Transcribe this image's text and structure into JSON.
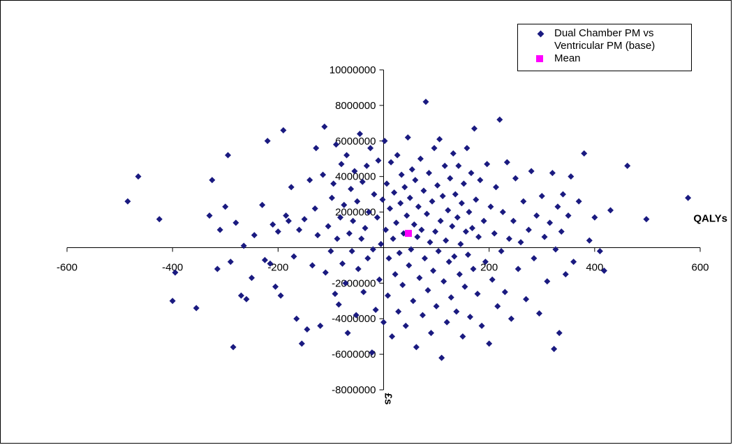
{
  "colors": {
    "series": "#1a1a80",
    "mean": "#ff00ff"
  },
  "chart_data": {
    "type": "scatter",
    "title": "",
    "xlabel": "QALYs",
    "ylabel": "£s",
    "xlim": [
      -600,
      600
    ],
    "ylim": [
      -8000000,
      10000000
    ],
    "x_ticks": [
      -600,
      -400,
      -200,
      0,
      200,
      400,
      600
    ],
    "y_ticks": [
      -8000000,
      -6000000,
      -4000000,
      -2000000,
      0,
      2000000,
      4000000,
      6000000,
      8000000,
      10000000
    ],
    "legend_position": "top-right",
    "grid": false,
    "series": [
      {
        "name": "Dual Chamber PM vs Ventricular PM (base)",
        "marker": "diamond",
        "points": [
          [
            -485,
            2600000
          ],
          [
            -465,
            4000000
          ],
          [
            -425,
            1600000
          ],
          [
            -395,
            -1400000
          ],
          [
            -400,
            -3000000
          ],
          [
            -355,
            -3400000
          ],
          [
            -330,
            1800000
          ],
          [
            -325,
            3800000
          ],
          [
            -315,
            -1200000
          ],
          [
            -310,
            1000000
          ],
          [
            -300,
            2300000
          ],
          [
            -295,
            5200000
          ],
          [
            -290,
            -800000
          ],
          [
            -285,
            -5600000
          ],
          [
            -280,
            1400000
          ],
          [
            -270,
            -2700000
          ],
          [
            -265,
            100000
          ],
          [
            -260,
            -2900000
          ],
          [
            -250,
            -1700000
          ],
          [
            -245,
            700000
          ],
          [
            -230,
            2400000
          ],
          [
            -225,
            -700000
          ],
          [
            -220,
            6000000
          ],
          [
            -215,
            -900000
          ],
          [
            -210,
            1300000
          ],
          [
            -205,
            -2200000
          ],
          [
            -200,
            900000
          ],
          [
            -195,
            -2700000
          ],
          [
            -190,
            6600000
          ],
          [
            -185,
            1800000
          ],
          [
            -180,
            1500000
          ],
          [
            -175,
            3400000
          ],
          [
            -170,
            -500000
          ],
          [
            -165,
            -4000000
          ],
          [
            -160,
            1000000
          ],
          [
            -155,
            -5400000
          ],
          [
            -150,
            1600000
          ],
          [
            -145,
            -4600000
          ],
          [
            -140,
            3800000
          ],
          [
            -135,
            -1000000
          ],
          [
            -130,
            2200000
          ],
          [
            -128,
            5600000
          ],
          [
            -125,
            700000
          ],
          [
            -120,
            -4400000
          ],
          [
            -115,
            4100000
          ],
          [
            -112,
            6800000
          ],
          [
            -110,
            -1400000
          ],
          [
            -105,
            1200000
          ],
          [
            -100,
            -200000
          ],
          [
            -98,
            2800000
          ],
          [
            -95,
            3600000
          ],
          [
            -92,
            -2600000
          ],
          [
            -90,
            5800000
          ],
          [
            -88,
            500000
          ],
          [
            -85,
            -3200000
          ],
          [
            -82,
            1700000
          ],
          [
            -80,
            4700000
          ],
          [
            -78,
            -900000
          ],
          [
            -75,
            2400000
          ],
          [
            -72,
            -2000000
          ],
          [
            -70,
            5200000
          ],
          [
            -68,
            -4800000
          ],
          [
            -65,
            800000
          ],
          [
            -62,
            3300000
          ],
          [
            -60,
            -200000
          ],
          [
            -58,
            1500000
          ],
          [
            -55,
            4300000
          ],
          [
            -52,
            -3800000
          ],
          [
            -50,
            2600000
          ],
          [
            -48,
            -1200000
          ],
          [
            -45,
            6400000
          ],
          [
            -42,
            500000
          ],
          [
            -40,
            3700000
          ],
          [
            -38,
            -2500000
          ],
          [
            -35,
            1100000
          ],
          [
            -32,
            4600000
          ],
          [
            -30,
            -600000
          ],
          [
            -28,
            2000000
          ],
          [
            -25,
            5600000
          ],
          [
            -22,
            -5900000
          ],
          [
            -20,
            -100000
          ],
          [
            -18,
            3000000
          ],
          [
            -15,
            -3500000
          ],
          [
            -12,
            1700000
          ],
          [
            -10,
            4900000
          ],
          [
            -8,
            -1800000
          ],
          [
            -5,
            200000
          ],
          [
            -2,
            2700000
          ],
          [
            0,
            -4200000
          ],
          [
            2,
            6000000
          ],
          [
            4,
            1000000
          ],
          [
            6,
            3600000
          ],
          [
            8,
            -2700000
          ],
          [
            10,
            -600000
          ],
          [
            12,
            2200000
          ],
          [
            14,
            4800000
          ],
          [
            16,
            -5000000
          ],
          [
            18,
            500000
          ],
          [
            20,
            3100000
          ],
          [
            22,
            -1500000
          ],
          [
            24,
            1400000
          ],
          [
            26,
            5200000
          ],
          [
            28,
            -3600000
          ],
          [
            30,
            -300000
          ],
          [
            32,
            2500000
          ],
          [
            34,
            4100000
          ],
          [
            36,
            -2100000
          ],
          [
            38,
            800000
          ],
          [
            40,
            3400000
          ],
          [
            42,
            -4400000
          ],
          [
            44,
            1800000
          ],
          [
            46,
            6200000
          ],
          [
            48,
            -1000000
          ],
          [
            50,
            2800000
          ],
          [
            52,
            -100000
          ],
          [
            54,
            4400000
          ],
          [
            56,
            -3000000
          ],
          [
            58,
            1300000
          ],
          [
            60,
            3800000
          ],
          [
            62,
            -5600000
          ],
          [
            64,
            600000
          ],
          [
            66,
            2300000
          ],
          [
            68,
            -1700000
          ],
          [
            70,
            5000000
          ],
          [
            72,
            1000000
          ],
          [
            74,
            -3800000
          ],
          [
            76,
            3200000
          ],
          [
            78,
            -600000
          ],
          [
            80,
            8200000
          ],
          [
            82,
            1900000
          ],
          [
            84,
            -2400000
          ],
          [
            86,
            4200000
          ],
          [
            88,
            300000
          ],
          [
            90,
            -4800000
          ],
          [
            92,
            2600000
          ],
          [
            94,
            -1300000
          ],
          [
            96,
            5600000
          ],
          [
            98,
            900000
          ],
          [
            100,
            -3300000
          ],
          [
            102,
            3500000
          ],
          [
            104,
            -200000
          ],
          [
            106,
            6100000
          ],
          [
            108,
            1500000
          ],
          [
            110,
            -6200000
          ],
          [
            112,
            2900000
          ],
          [
            114,
            -1900000
          ],
          [
            116,
            4600000
          ],
          [
            118,
            400000
          ],
          [
            120,
            -4200000
          ],
          [
            122,
            2100000
          ],
          [
            124,
            -800000
          ],
          [
            126,
            3900000
          ],
          [
            128,
            -2800000
          ],
          [
            130,
            1200000
          ],
          [
            132,
            5300000
          ],
          [
            134,
            -500000
          ],
          [
            136,
            3000000
          ],
          [
            138,
            -3600000
          ],
          [
            140,
            1700000
          ],
          [
            142,
            4600000
          ],
          [
            144,
            -1500000
          ],
          [
            146,
            200000
          ],
          [
            148,
            2500000
          ],
          [
            150,
            -5000000
          ],
          [
            152,
            3600000
          ],
          [
            154,
            -2200000
          ],
          [
            156,
            900000
          ],
          [
            158,
            5600000
          ],
          [
            160,
            -400000
          ],
          [
            162,
            2000000
          ],
          [
            164,
            -3900000
          ],
          [
            166,
            4200000
          ],
          [
            168,
            1100000
          ],
          [
            170,
            -1200000
          ],
          [
            172,
            6700000
          ],
          [
            175,
            2700000
          ],
          [
            178,
            -2600000
          ],
          [
            180,
            600000
          ],
          [
            183,
            3800000
          ],
          [
            186,
            -4400000
          ],
          [
            190,
            1500000
          ],
          [
            193,
            -800000
          ],
          [
            196,
            4700000
          ],
          [
            200,
            -5400000
          ],
          [
            203,
            2300000
          ],
          [
            206,
            -1800000
          ],
          [
            210,
            800000
          ],
          [
            213,
            3400000
          ],
          [
            216,
            -3300000
          ],
          [
            220,
            7200000
          ],
          [
            223,
            -200000
          ],
          [
            226,
            2000000
          ],
          [
            230,
            -2500000
          ],
          [
            234,
            4800000
          ],
          [
            238,
            500000
          ],
          [
            242,
            -4000000
          ],
          [
            246,
            1500000
          ],
          [
            250,
            3900000
          ],
          [
            255,
            -1200000
          ],
          [
            260,
            300000
          ],
          [
            265,
            2600000
          ],
          [
            270,
            -2900000
          ],
          [
            275,
            1000000
          ],
          [
            280,
            4300000
          ],
          [
            285,
            -600000
          ],
          [
            290,
            1800000
          ],
          [
            295,
            -3700000
          ],
          [
            300,
            2900000
          ],
          [
            305,
            600000
          ],
          [
            310,
            -1900000
          ],
          [
            315,
            1400000
          ],
          [
            320,
            4200000
          ],
          [
            323,
            -5700000
          ],
          [
            326,
            -100000
          ],
          [
            330,
            2300000
          ],
          [
            333,
            -4800000
          ],
          [
            337,
            900000
          ],
          [
            340,
            3000000
          ],
          [
            345,
            -1500000
          ],
          [
            350,
            1800000
          ],
          [
            355,
            4000000
          ],
          [
            360,
            -800000
          ],
          [
            370,
            2600000
          ],
          [
            380,
            5300000
          ],
          [
            390,
            400000
          ],
          [
            400,
            1700000
          ],
          [
            410,
            -200000
          ],
          [
            418,
            -1300000
          ],
          [
            430,
            2100000
          ],
          [
            462,
            4600000
          ],
          [
            498,
            1600000
          ],
          [
            577,
            2800000
          ]
        ]
      },
      {
        "name": "Mean",
        "marker": "square",
        "points": [
          [
            47,
            800000
          ]
        ]
      }
    ]
  }
}
